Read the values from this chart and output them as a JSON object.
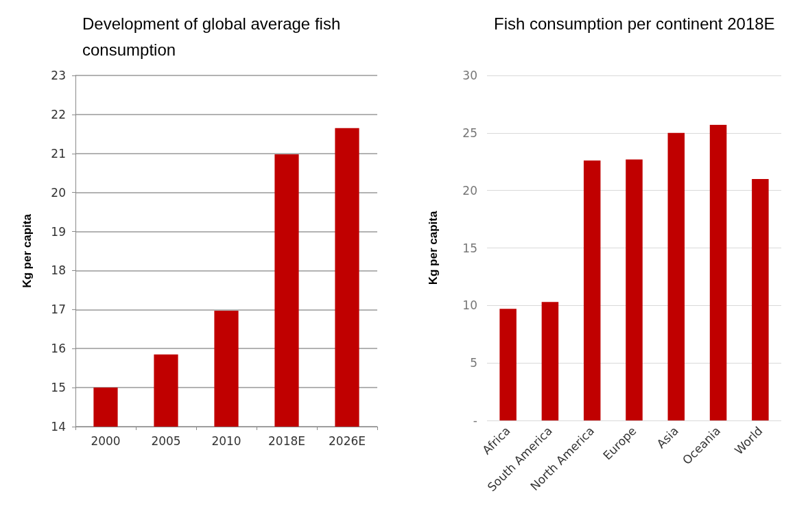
{
  "chart_data": [
    {
      "type": "bar",
      "title": "Development of global average fish consumption",
      "ylabel": "Kg per capita",
      "categories": [
        "2000",
        "2005",
        "2010",
        "2018E",
        "2026E"
      ],
      "values": [
        15.0,
        15.85,
        16.97,
        20.98,
        21.65
      ],
      "color": "#c00000",
      "ylim": [
        14,
        23
      ],
      "yticks": [
        14,
        15,
        16,
        17,
        18,
        19,
        20,
        21,
        22,
        23
      ],
      "grid": "y"
    },
    {
      "type": "bar",
      "title": "Fish consumption per continent 2018E",
      "ylabel": "Kg per capita",
      "categories": [
        "Africa",
        "South America",
        "North America",
        "Europe",
        "Asia",
        "Oceania",
        "World"
      ],
      "values": [
        9.7,
        10.3,
        22.6,
        22.7,
        25.0,
        25.7,
        21.0
      ],
      "color": "#c00000",
      "ylim": [
        0,
        30
      ],
      "yticks": [
        {
          "value": 0,
          "label": "-"
        },
        5,
        10,
        15,
        20,
        25,
        30
      ],
      "grid": "y"
    }
  ]
}
